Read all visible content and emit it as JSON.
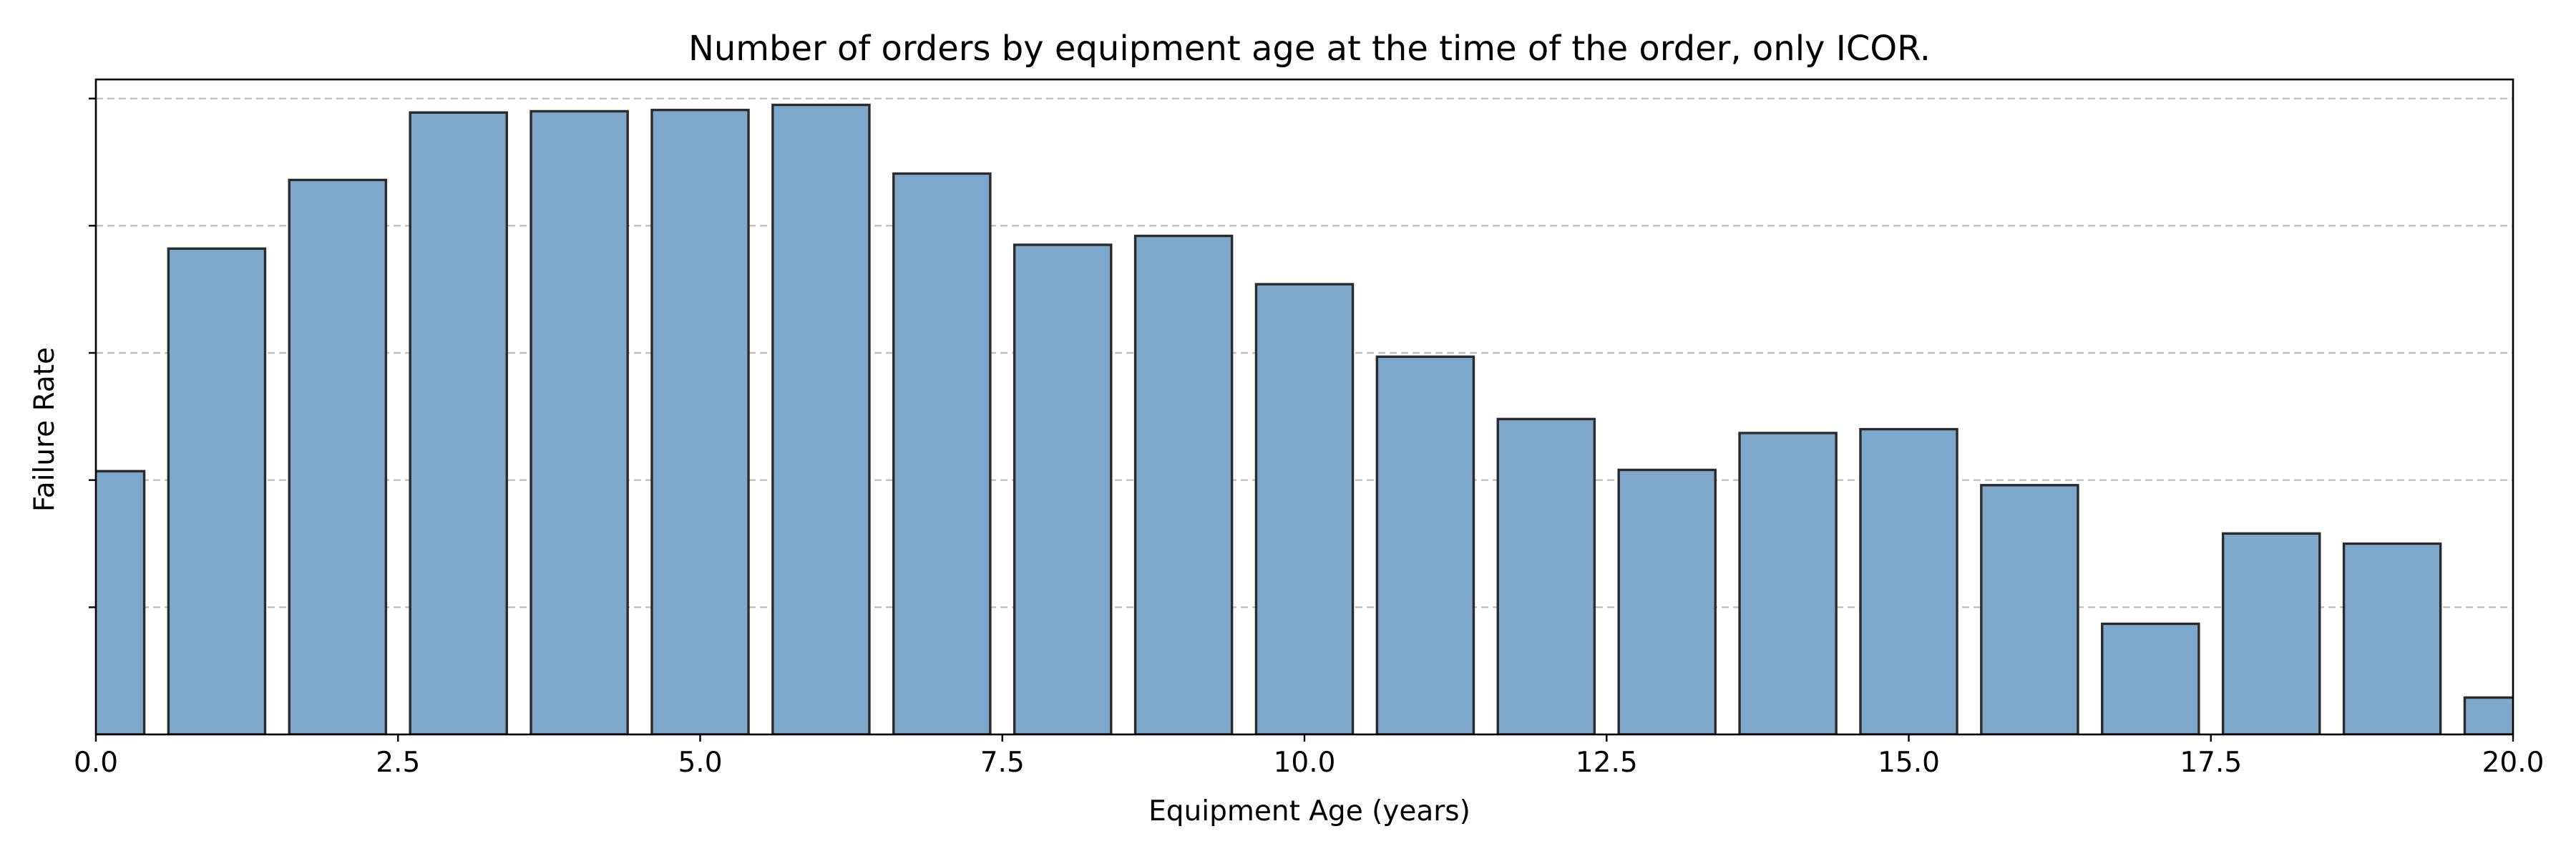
{
  "chart_data": {
    "type": "bar",
    "title": "Number of orders by equipment age at the time of the order, only ICOR.",
    "xlabel": "Equipment Age (years)",
    "ylabel": "Failure Rate",
    "x": [
      0,
      1,
      2,
      3,
      4,
      5,
      6,
      7,
      8,
      9,
      10,
      11,
      12,
      13,
      14,
      15,
      16,
      17,
      18,
      19,
      20
    ],
    "values": [
      2.07,
      3.82,
      4.36,
      4.89,
      4.9,
      4.91,
      4.95,
      4.41,
      3.85,
      3.92,
      3.54,
      2.97,
      2.48,
      2.08,
      2.37,
      2.4,
      1.96,
      0.87,
      1.58,
      1.5,
      0.29
    ],
    "bar_width": 0.8,
    "xlim": [
      0,
      20
    ],
    "ylim": [
      0,
      5.15
    ],
    "xticks": [
      0,
      2.5,
      5,
      7.5,
      10,
      12.5,
      15,
      17.5,
      20
    ],
    "xtick_labels": [
      "0.0",
      "2.5",
      "5.0",
      "7.5",
      "10.0",
      "12.5",
      "15.0",
      "17.5",
      "20.0"
    ],
    "yticks": [
      1,
      2,
      3,
      4,
      5
    ],
    "ytick_labels_visible": false,
    "grid": "y",
    "bar_color": "#7ea7cc",
    "edge_color": "#2b2b2b"
  }
}
